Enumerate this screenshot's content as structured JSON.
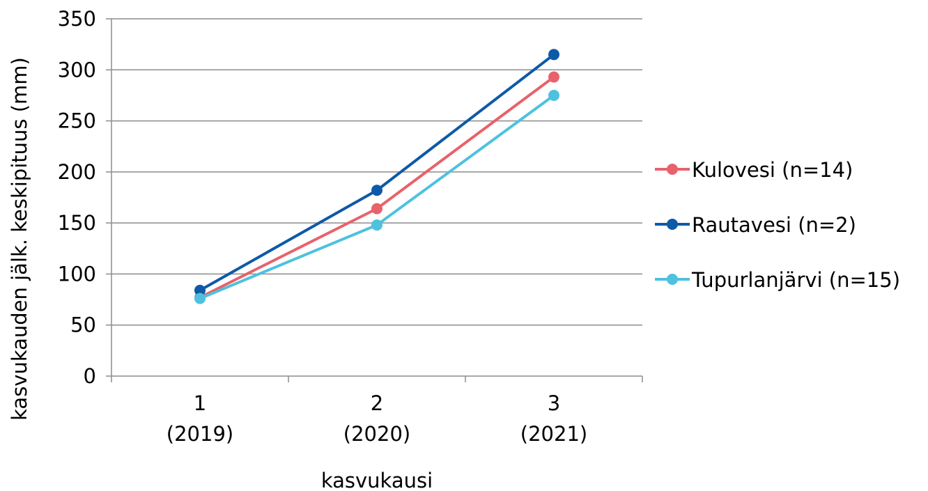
{
  "chart_data": {
    "type": "line",
    "categories": [
      [
        "1",
        "(2019)"
      ],
      [
        "2",
        "(2020)"
      ],
      [
        "3",
        "(2021)"
      ]
    ],
    "xlabel": "kasvukausi",
    "ylabel": "kasvukauden jälk. keskipituus (mm)",
    "ylim": [
      0,
      350
    ],
    "yticks": [
      0,
      50,
      100,
      150,
      200,
      250,
      300,
      350
    ],
    "grid": true,
    "legend_position": "right",
    "series": [
      {
        "name": "Kulovesi (n=14)",
        "color": "#e8626b",
        "values": [
          77,
          164,
          293
        ]
      },
      {
        "name": "Rautavesi (n=2)",
        "color": "#0d5aa7",
        "values": [
          84,
          182,
          315
        ]
      },
      {
        "name": "Tupurlanjärvi (n=15)",
        "color": "#4ec1df",
        "values": [
          76,
          148,
          275
        ]
      }
    ]
  }
}
